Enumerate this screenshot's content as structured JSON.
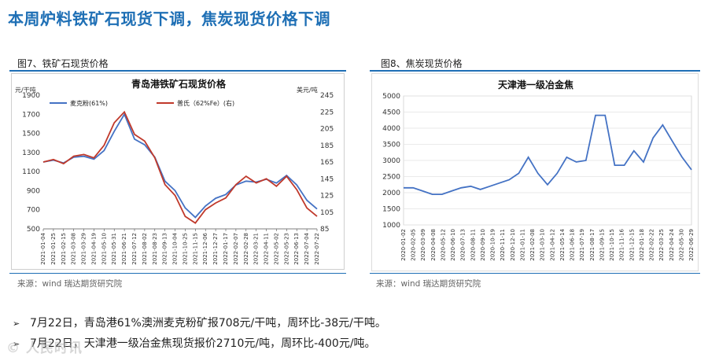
{
  "page": {
    "title": "本周炉料铁矿石现货下调，焦炭现货价格下调",
    "figure7_label": "图7、铁矿石现货价格",
    "figure8_label": "图8、焦炭现货价格",
    "source_left": "来源：wind   瑞达期货研究院",
    "source_right": "来源：wind   瑞达期货研究院",
    "bullets": [
      "7月22日，青岛港61%澳洲麦克粉矿报708元/干吨，周环比-38元/干吨。",
      "7月22日，天津港一级冶金焦现货报价2710元/吨，周环比-400元/吨。"
    ],
    "bullet_symbol": "➢",
    "watermark": "© 人民时讯"
  },
  "chart_data": [
    {
      "type": "line",
      "title": "青岛港铁矿石现货价格",
      "ylabel_left": "元/干吨",
      "ylabel_right": "美元/吨",
      "ylim_left": [
        500,
        1900
      ],
      "ylim_right": [
        85,
        245
      ],
      "yticks_left": [
        500,
        700,
        900,
        1100,
        1300,
        1500,
        1700,
        1900
      ],
      "yticks_right": [
        85,
        105,
        125,
        145,
        165,
        185,
        205,
        225,
        245
      ],
      "x": [
        "2021-01-04",
        "2021-01-25",
        "2021-02-15",
        "2021-03-08",
        "2021-03-29",
        "2021-04-19",
        "2021-05-10",
        "2021-05-31",
        "2021-06-21",
        "2021-07-12",
        "2021-08-02",
        "2021-08-23",
        "2021-09-13",
        "2021-10-04",
        "2021-10-25",
        "2021-11-15",
        "2021-12-06",
        "2021-12-27",
        "2022-01-17",
        "2022-02-07",
        "2022-02-28",
        "2022-03-21",
        "2022-04-11",
        "2022-05-02",
        "2022-05-23",
        "2022-06-13",
        "2022-07-04",
        "2022-07-22"
      ],
      "xtick_labels": [
        "2021-01-04",
        "2021-01-25",
        "2021-02-15",
        "2021-03-08",
        "2021-03-29",
        "2021-04-19",
        "2021-05-10",
        "2021-05-31",
        "2021-06-21",
        "2021-07-12",
        "2021-08-02",
        "2021-08-23",
        "2021-09-13",
        "2021-10-04",
        "2021-10-25",
        "2021-11-15",
        "2021-12-06",
        "2021-12-27",
        "2022-01-17",
        "2022-02-07",
        "2022-02-28",
        "2022-03-21",
        "2022-04-11",
        "2022-05-02",
        "2022-05-23",
        "2022-06-13",
        "2022-07-04",
        "2022-07-22"
      ],
      "xtick_display": [
        "2021-01-04",
        "2021-01-25",
        "2021-02-15",
        "2021-03-08",
        "2021-03-29",
        "2021-04-19",
        "2021-05-10",
        "2021-05-31",
        "2021-06-21",
        "2021-07-12",
        "2021-08-02",
        "2021-08-23",
        "2021-09-13",
        "2021-10-04",
        "2021-10-25",
        "2021-11-15",
        "2021-12-06",
        "2021-12-27",
        "2022-01-17",
        "2022-02-07",
        "2022-02-28",
        "2022-03-21",
        "2022-04-11",
        "2022-05-02",
        "2022-05-23",
        "2022-06-13",
        "2022-07-04",
        "2022-07-22"
      ],
      "legend_position": "top-left",
      "series": [
        {
          "name": "麦克粉(61%)",
          "axis": "left",
          "color": "#4472c4",
          "values": [
            1200,
            1220,
            1190,
            1250,
            1260,
            1230,
            1320,
            1520,
            1700,
            1440,
            1380,
            1250,
            1000,
            900,
            720,
            620,
            740,
            820,
            860,
            960,
            1000,
            990,
            1020,
            980,
            1060,
            960,
            800,
            708
          ]
        },
        {
          "name": "普氏（62%Fe）(右)",
          "axis": "right",
          "color": "#c0392b",
          "values": [
            165,
            168,
            163,
            172,
            174,
            170,
            185,
            212,
            225,
            198,
            190,
            170,
            138,
            125,
            100,
            92,
            108,
            116,
            122,
            138,
            148,
            140,
            145,
            136,
            148,
            132,
            110,
            100
          ]
        }
      ]
    },
    {
      "type": "line",
      "title": "天津港一级冶金焦",
      "ylim": [
        1000,
        5000
      ],
      "yticks": [
        1000,
        1500,
        2000,
        2500,
        3000,
        3500,
        4000,
        4500,
        5000
      ],
      "x": [
        "2020-01-02",
        "2020-02-05",
        "2020-03-09",
        "2020-04-08",
        "2020-05-12",
        "2020-06-10",
        "2020-07-13",
        "2020-08-11",
        "2020-09-10",
        "2020-10-19",
        "2020-11-11",
        "2020-12-10",
        "2021-01-11",
        "2021-02-08",
        "2021-03-10",
        "2021-04-12",
        "2021-05-14",
        "2021-06-18",
        "2021-07-19",
        "2021-08-17",
        "2021-09-15",
        "2021-10-15",
        "2021-11-16",
        "2021-12-15",
        "2022-01-18",
        "2022-02-22",
        "2022-03-25",
        "2022-04-24",
        "2022-05-30",
        "2022-06-29",
        "2022-07-22"
      ],
      "xtick_display": [
        "2020-01-02",
        "2020-02-05",
        "2020-03-09",
        "2020-04-08",
        "2020-05-12",
        "2020-06-10",
        "2020-07-13",
        "2020-08-11",
        "2020-09-10",
        "2020-10-19",
        "2020-11-11",
        "2020-12-10",
        "2021-01-11",
        "2021-02-08",
        "2021-03-10",
        "2021-04-12",
        "2021-05-14",
        "2021-06-18",
        "2021-07-19",
        "2021-08-17",
        "2021-09-15",
        "2021-10-15",
        "2021-11-16",
        "2021-12-15",
        "2022-01-18",
        "2022-02-22",
        "2022-03-25",
        "2022-04-24",
        "2022-05-30",
        "2022-06-29"
      ],
      "series": [
        {
          "color": "#4472c4",
          "values": [
            2150,
            2150,
            2050,
            1950,
            1950,
            2050,
            2150,
            2200,
            2100,
            2200,
            2300,
            2400,
            2600,
            3100,
            2600,
            2250,
            2600,
            3100,
            2950,
            3000,
            4400,
            4400,
            2850,
            2850,
            3300,
            2950,
            3700,
            4100,
            3600,
            3110,
            2710
          ]
        }
      ]
    }
  ]
}
